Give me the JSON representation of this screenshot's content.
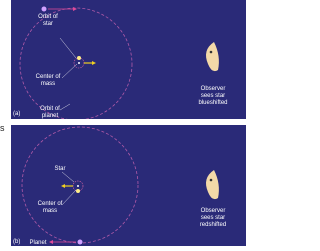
{
  "side_fragment": "s",
  "panels": [
    {
      "tag": "(a)",
      "labels": {
        "orbit_of_star": [
          "Orbit of",
          "star"
        ],
        "center_of_mass": [
          "Center of",
          "mass"
        ],
        "orbit_of_planet": [
          "Orbit of",
          "planet"
        ]
      },
      "observer": [
        "Observer",
        "sees star",
        "blueshifted"
      ]
    },
    {
      "tag": "(b)",
      "labels": {
        "star": [
          "Star"
        ],
        "center_of_mass": [
          "Center of",
          "mass"
        ],
        "planet": [
          "Planet"
        ]
      },
      "observer": [
        "Observer",
        "sees star",
        "redshifted"
      ]
    }
  ]
}
